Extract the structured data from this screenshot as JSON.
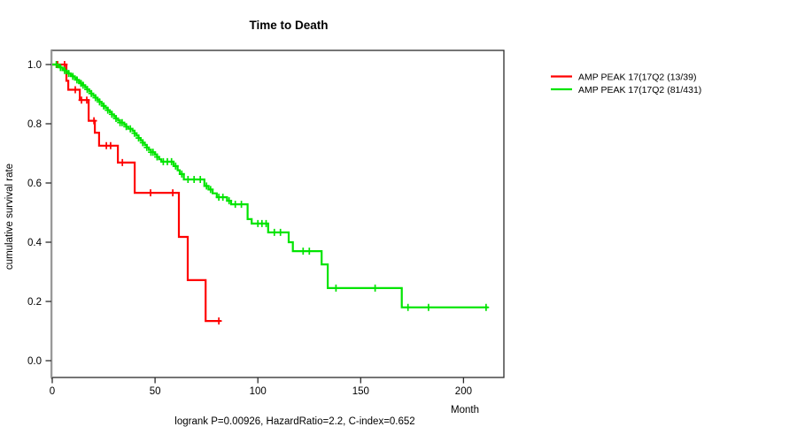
{
  "title": "Time to Death",
  "caption": "logrank P=0.00926, HazardRatio=2.2, C-index=0.652",
  "axes": {
    "x": {
      "label": "Month",
      "tick_labels": [
        "0",
        "50",
        "100",
        "150",
        "200"
      ],
      "tick_values": [
        0,
        50,
        100,
        150,
        200
      ]
    },
    "y": {
      "label": "cumulative survival rate",
      "tick_labels": [
        "0.0",
        "0.2",
        "0.4",
        "0.6",
        "0.8",
        "1.0"
      ],
      "tick_values": [
        0,
        0.2,
        0.4,
        0.6,
        0.8,
        1.0
      ]
    }
  },
  "legend": [
    {
      "label": "AMP PEAK 17(17Q2 (13/39)",
      "color": "#ff0000"
    },
    {
      "label": "AMP PEAK 17(17Q2 (81/431)",
      "color": "#00e400"
    }
  ],
  "chart_data": {
    "type": "line",
    "subtype": "kaplan-meier-step",
    "title": "Time to Death",
    "xlabel": "Month",
    "ylabel": "cumulative survival rate",
    "xlim": [
      0,
      220
    ],
    "ylim": [
      0,
      1.0
    ],
    "grid": false,
    "legend_position": "right-outside",
    "footnote": "logrank P=0.00926, HazardRatio=2.2, C-index=0.652",
    "series": [
      {
        "name": "AMP PEAK 17(17Q2 (13/39)",
        "color": "#ff0000",
        "events": "13/39",
        "end_month": 82,
        "points": [
          [
            0,
            1.0
          ],
          [
            6.9,
            0.945
          ],
          [
            7.8,
            0.915
          ],
          [
            13.4,
            0.88
          ],
          [
            17.7,
            0.81
          ],
          [
            20.7,
            0.77
          ],
          [
            22.8,
            0.726
          ],
          [
            31.9,
            0.669
          ],
          [
            40.1,
            0.567
          ],
          [
            61.6,
            0.418
          ],
          [
            65.9,
            0.272
          ],
          [
            74.6,
            0.134
          ]
        ],
        "censors": [
          [
            2.6,
            1.0
          ],
          [
            6.0,
            1.0
          ],
          [
            11.2,
            0.915
          ],
          [
            14.2,
            0.88
          ],
          [
            16.8,
            0.88
          ],
          [
            20.3,
            0.81
          ],
          [
            26.3,
            0.726
          ],
          [
            28.4,
            0.726
          ],
          [
            34.1,
            0.669
          ],
          [
            47.8,
            0.567
          ],
          [
            58.6,
            0.567
          ],
          [
            81,
            0.134
          ]
        ]
      },
      {
        "name": "AMP PEAK 17(17Q2 (81/431)",
        "color": "#00e400",
        "events": "81/431",
        "end_month": 212,
        "points": [
          [
            0,
            1.0
          ],
          [
            3,
            0.995
          ],
          [
            4,
            0.99
          ],
          [
            5,
            0.985
          ],
          [
            6,
            0.98
          ],
          [
            7,
            0.975
          ],
          [
            8,
            0.97
          ],
          [
            9,
            0.965
          ],
          [
            10,
            0.96
          ],
          [
            11,
            0.954
          ],
          [
            12,
            0.948
          ],
          [
            13,
            0.942
          ],
          [
            14,
            0.936
          ],
          [
            15,
            0.93
          ],
          [
            16,
            0.923
          ],
          [
            17,
            0.916
          ],
          [
            18,
            0.909
          ],
          [
            19,
            0.902
          ],
          [
            20,
            0.895
          ],
          [
            21,
            0.888
          ],
          [
            22,
            0.881
          ],
          [
            23,
            0.874
          ],
          [
            24,
            0.867
          ],
          [
            25,
            0.86
          ],
          [
            26,
            0.853
          ],
          [
            27,
            0.846
          ],
          [
            28,
            0.839
          ],
          [
            29,
            0.832
          ],
          [
            30,
            0.825
          ],
          [
            31,
            0.818
          ],
          [
            32,
            0.811
          ],
          [
            33,
            0.804
          ],
          [
            35,
            0.797
          ],
          [
            36,
            0.79
          ],
          [
            37,
            0.783
          ],
          [
            39,
            0.776
          ],
          [
            40,
            0.768
          ],
          [
            41,
            0.76
          ],
          [
            42,
            0.752
          ],
          [
            43,
            0.744
          ],
          [
            44,
            0.736
          ],
          [
            45,
            0.728
          ],
          [
            46,
            0.72
          ],
          [
            47,
            0.712
          ],
          [
            48,
            0.704
          ],
          [
            50,
            0.696
          ],
          [
            51,
            0.688
          ],
          [
            52,
            0.68
          ],
          [
            53,
            0.672
          ],
          [
            59,
            0.657
          ],
          [
            61,
            0.643
          ],
          [
            62,
            0.63
          ],
          [
            64,
            0.612
          ],
          [
            74,
            0.59
          ],
          [
            76,
            0.578
          ],
          [
            78,
            0.565
          ],
          [
            80,
            0.552
          ],
          [
            85,
            0.54
          ],
          [
            87,
            0.528
          ],
          [
            95,
            0.478
          ],
          [
            97,
            0.463
          ],
          [
            105,
            0.433
          ],
          [
            115,
            0.4
          ],
          [
            117,
            0.37
          ],
          [
            131,
            0.325
          ],
          [
            134,
            0.245
          ],
          [
            170,
            0.18
          ]
        ],
        "censors": [
          [
            2,
            1.0
          ],
          [
            4,
            0.99
          ],
          [
            6,
            0.98
          ],
          [
            8,
            0.97
          ],
          [
            10,
            0.96
          ],
          [
            12,
            0.948
          ],
          [
            14,
            0.936
          ],
          [
            15,
            0.93
          ],
          [
            17,
            0.916
          ],
          [
            19,
            0.902
          ],
          [
            21,
            0.888
          ],
          [
            23,
            0.874
          ],
          [
            25,
            0.86
          ],
          [
            27,
            0.846
          ],
          [
            29,
            0.832
          ],
          [
            31,
            0.818
          ],
          [
            33,
            0.804
          ],
          [
            34,
            0.804
          ],
          [
            36,
            0.79
          ],
          [
            38,
            0.783
          ],
          [
            40,
            0.768
          ],
          [
            42,
            0.752
          ],
          [
            44,
            0.736
          ],
          [
            46,
            0.72
          ],
          [
            48,
            0.704
          ],
          [
            49,
            0.704
          ],
          [
            51,
            0.688
          ],
          [
            54,
            0.672
          ],
          [
            56,
            0.672
          ],
          [
            58,
            0.672
          ],
          [
            60,
            0.657
          ],
          [
            63,
            0.63
          ],
          [
            66,
            0.612
          ],
          [
            69,
            0.612
          ],
          [
            72,
            0.612
          ],
          [
            75,
            0.59
          ],
          [
            77,
            0.578
          ],
          [
            81,
            0.552
          ],
          [
            83,
            0.552
          ],
          [
            86,
            0.54
          ],
          [
            89,
            0.528
          ],
          [
            92,
            0.528
          ],
          [
            100,
            0.463
          ],
          [
            102,
            0.463
          ],
          [
            104,
            0.463
          ],
          [
            108,
            0.433
          ],
          [
            111,
            0.433
          ],
          [
            122,
            0.37
          ],
          [
            125,
            0.37
          ],
          [
            138,
            0.245
          ],
          [
            157,
            0.245
          ],
          [
            173,
            0.18
          ],
          [
            183,
            0.18
          ],
          [
            211,
            0.18
          ]
        ]
      }
    ]
  }
}
